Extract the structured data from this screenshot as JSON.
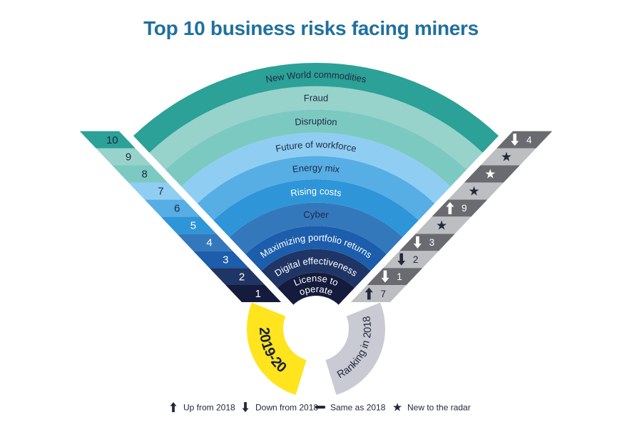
{
  "header": {
    "title": "Top 10 business risks facing miners"
  },
  "palette": {
    "title": "#1F709F",
    "background": "#FFFFFF",
    "band_text_dark": "#202A45",
    "band_text_light": "#FFFFFF",
    "ribbon_dark": "#6A6B70",
    "ribbon_light": "#BDBEC2",
    "arc_gray": "#C9CAD4",
    "arc_yellow": "#FFE41E",
    "arc_label": "#1A2038",
    "legend_text": "#23293C"
  },
  "chart_data": {
    "type": "table",
    "title": "Top 10 business risks facing miners",
    "layout": "radial fan: rank 1 innermost band to rank 10 outermost; left ribbon = 2019-20 ranks, right ribbon = change vs 2018",
    "axis_left_label": "2019-20",
    "axis_right_label": "Ranking in 2018",
    "rings": [
      {
        "rank": 1,
        "label": "License to operate",
        "label_lines": [
          "License to",
          "operate"
        ],
        "change": "up",
        "rank_2018": 7,
        "color": "#141B3C",
        "label_color": "#FFFFFF",
        "rank_color": "#FFFFFF",
        "marker_cell": "light"
      },
      {
        "rank": 2,
        "label": "Digital effectiveness",
        "change": "down",
        "rank_2018": 1,
        "color": "#1F3566",
        "label_color": "#FFFFFF",
        "rank_color": "#FFFFFF",
        "marker_cell": "dark"
      },
      {
        "rank": 3,
        "label": "Maximizing portfolio returns",
        "change": "down",
        "rank_2018": 2,
        "color": "#1C5DAC",
        "label_color": "#FFFFFF",
        "rank_color": "#FFFFFF",
        "marker_cell": "light"
      },
      {
        "rank": 4,
        "label": "Cyber",
        "change": "down",
        "rank_2018": 3,
        "color": "#3478BC",
        "label_color": "#202A45",
        "rank_color": "#FFFFFF",
        "marker_cell": "dark"
      },
      {
        "rank": 5,
        "label": "Rising costs",
        "change": "new",
        "color": "#2E95D9",
        "label_color": "#FFFFFF",
        "rank_color": "#FFFFFF",
        "marker_cell": "light"
      },
      {
        "rank": 6,
        "label": "Energy mix",
        "change": "up",
        "rank_2018": 9,
        "color": "#56AEE5",
        "label_color": "#202A45",
        "rank_color": "#202A45",
        "marker_cell": "dark"
      },
      {
        "rank": 7,
        "label": "Future of workforce",
        "change": "new",
        "color": "#8FCEF2",
        "label_color": "#202A45",
        "rank_color": "#202A45",
        "marker_cell": "light"
      },
      {
        "rank": 8,
        "label": "Disruption",
        "change": "new",
        "color": "#7CC9C2",
        "label_color": "#202A45",
        "rank_color": "#202A45",
        "marker_cell": "dark"
      },
      {
        "rank": 9,
        "label": "Fraud",
        "change": "new",
        "color": "#97D3CB",
        "label_color": "#202A45",
        "rank_color": "#202A45",
        "marker_cell": "light"
      },
      {
        "rank": 10,
        "label": "New World commodities",
        "change": "down",
        "rank_2018": 4,
        "color": "#2BA197",
        "label_color": "#202A45",
        "rank_color": "#202A45",
        "marker_cell": "dark"
      }
    ],
    "legend": [
      {
        "icon": "up-arrow",
        "label": "Up from 2018"
      },
      {
        "icon": "down-arrow",
        "label": "Down from 2018"
      },
      {
        "icon": "dash",
        "label": "Same as 2018"
      },
      {
        "icon": "star",
        "label": "New to the radar"
      }
    ]
  }
}
